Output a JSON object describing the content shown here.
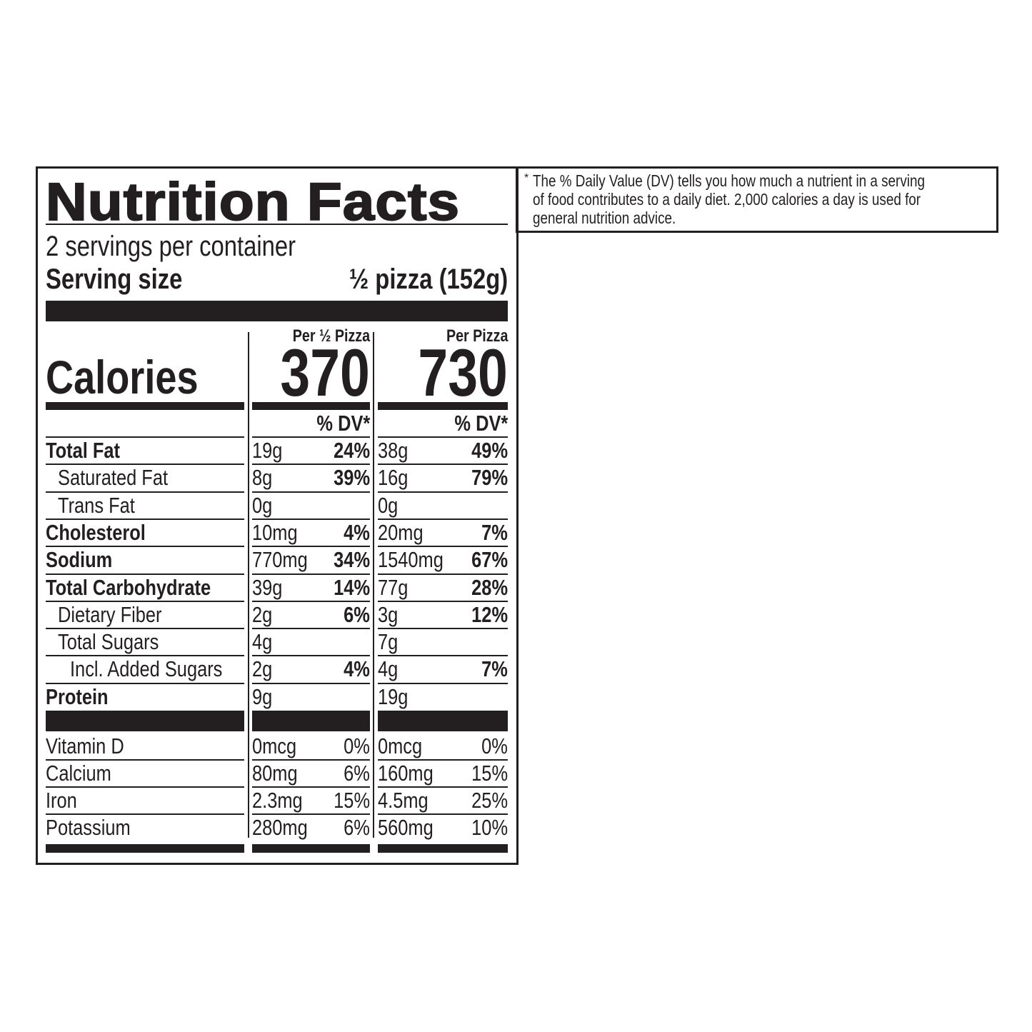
{
  "label": {
    "title": "Nutrition Facts",
    "servings_per_container": "2 servings per container",
    "serving_size_label": "Serving size",
    "serving_size_value": "½ pizza (152g)",
    "calories_label": "Calories",
    "columns": [
      {
        "header": "Per ½ Pizza",
        "calories": "370",
        "dv_header": "% DV*"
      },
      {
        "header": "Per Pizza",
        "calories": "730",
        "dv_header": "% DV*"
      }
    ],
    "nutrients": [
      {
        "name": "Total Fat",
        "bold": true,
        "indent": 0,
        "values": [
          {
            "amount": "19g",
            "dv": "24%"
          },
          {
            "amount": "38g",
            "dv": "49%"
          }
        ]
      },
      {
        "name": "Saturated Fat",
        "bold": false,
        "indent": 1,
        "values": [
          {
            "amount": "8g",
            "dv": "39%"
          },
          {
            "amount": "16g",
            "dv": "79%"
          }
        ]
      },
      {
        "name": "Trans Fat",
        "bold": false,
        "indent": 1,
        "values": [
          {
            "amount": "0g",
            "dv": ""
          },
          {
            "amount": "0g",
            "dv": ""
          }
        ]
      },
      {
        "name": "Cholesterol",
        "bold": true,
        "indent": 0,
        "values": [
          {
            "amount": "10mg",
            "dv": "4%"
          },
          {
            "amount": "20mg",
            "dv": "7%"
          }
        ]
      },
      {
        "name": "Sodium",
        "bold": true,
        "indent": 0,
        "values": [
          {
            "amount": "770mg",
            "dv": "34%"
          },
          {
            "amount": "1540mg",
            "dv": "67%"
          }
        ]
      },
      {
        "name": "Total Carbohydrate",
        "bold": true,
        "indent": 0,
        "values": [
          {
            "amount": "39g",
            "dv": "14%"
          },
          {
            "amount": "77g",
            "dv": "28%"
          }
        ]
      },
      {
        "name": "Dietary Fiber",
        "bold": false,
        "indent": 1,
        "values": [
          {
            "amount": "2g",
            "dv": "6%"
          },
          {
            "amount": "3g",
            "dv": "12%"
          }
        ]
      },
      {
        "name": "Total Sugars",
        "bold": false,
        "indent": 1,
        "values": [
          {
            "amount": "4g",
            "dv": ""
          },
          {
            "amount": "7g",
            "dv": ""
          }
        ]
      },
      {
        "name": "Incl. Added Sugars",
        "bold": false,
        "indent": 2,
        "values": [
          {
            "amount": "2g",
            "dv": "4%"
          },
          {
            "amount": "4g",
            "dv": "7%"
          }
        ]
      },
      {
        "name": "Protein",
        "bold": true,
        "indent": 0,
        "values": [
          {
            "amount": "9g",
            "dv": ""
          },
          {
            "amount": "19g",
            "dv": ""
          }
        ]
      }
    ],
    "vitamins": [
      {
        "name": "Vitamin D",
        "values": [
          {
            "amount": "0mcg",
            "dv": "0%"
          },
          {
            "amount": "0mcg",
            "dv": "0%"
          }
        ]
      },
      {
        "name": "Calcium",
        "values": [
          {
            "amount": "80mg",
            "dv": "6%"
          },
          {
            "amount": "160mg",
            "dv": "15%"
          }
        ]
      },
      {
        "name": "Iron",
        "values": [
          {
            "amount": "2.3mg",
            "dv": "15%"
          },
          {
            "amount": "4.5mg",
            "dv": "25%"
          }
        ]
      },
      {
        "name": "Potassium",
        "values": [
          {
            "amount": "280mg",
            "dv": "6%"
          },
          {
            "amount": "560mg",
            "dv": "10%"
          }
        ]
      }
    ]
  },
  "footnote": {
    "asterisk": "*",
    "lines": [
      "The % Daily Value (DV) tells you how much a nutrient in a serving",
      "of food contributes to a daily diet. 2,000 calories a day is used for",
      "general nutrition advice."
    ]
  }
}
